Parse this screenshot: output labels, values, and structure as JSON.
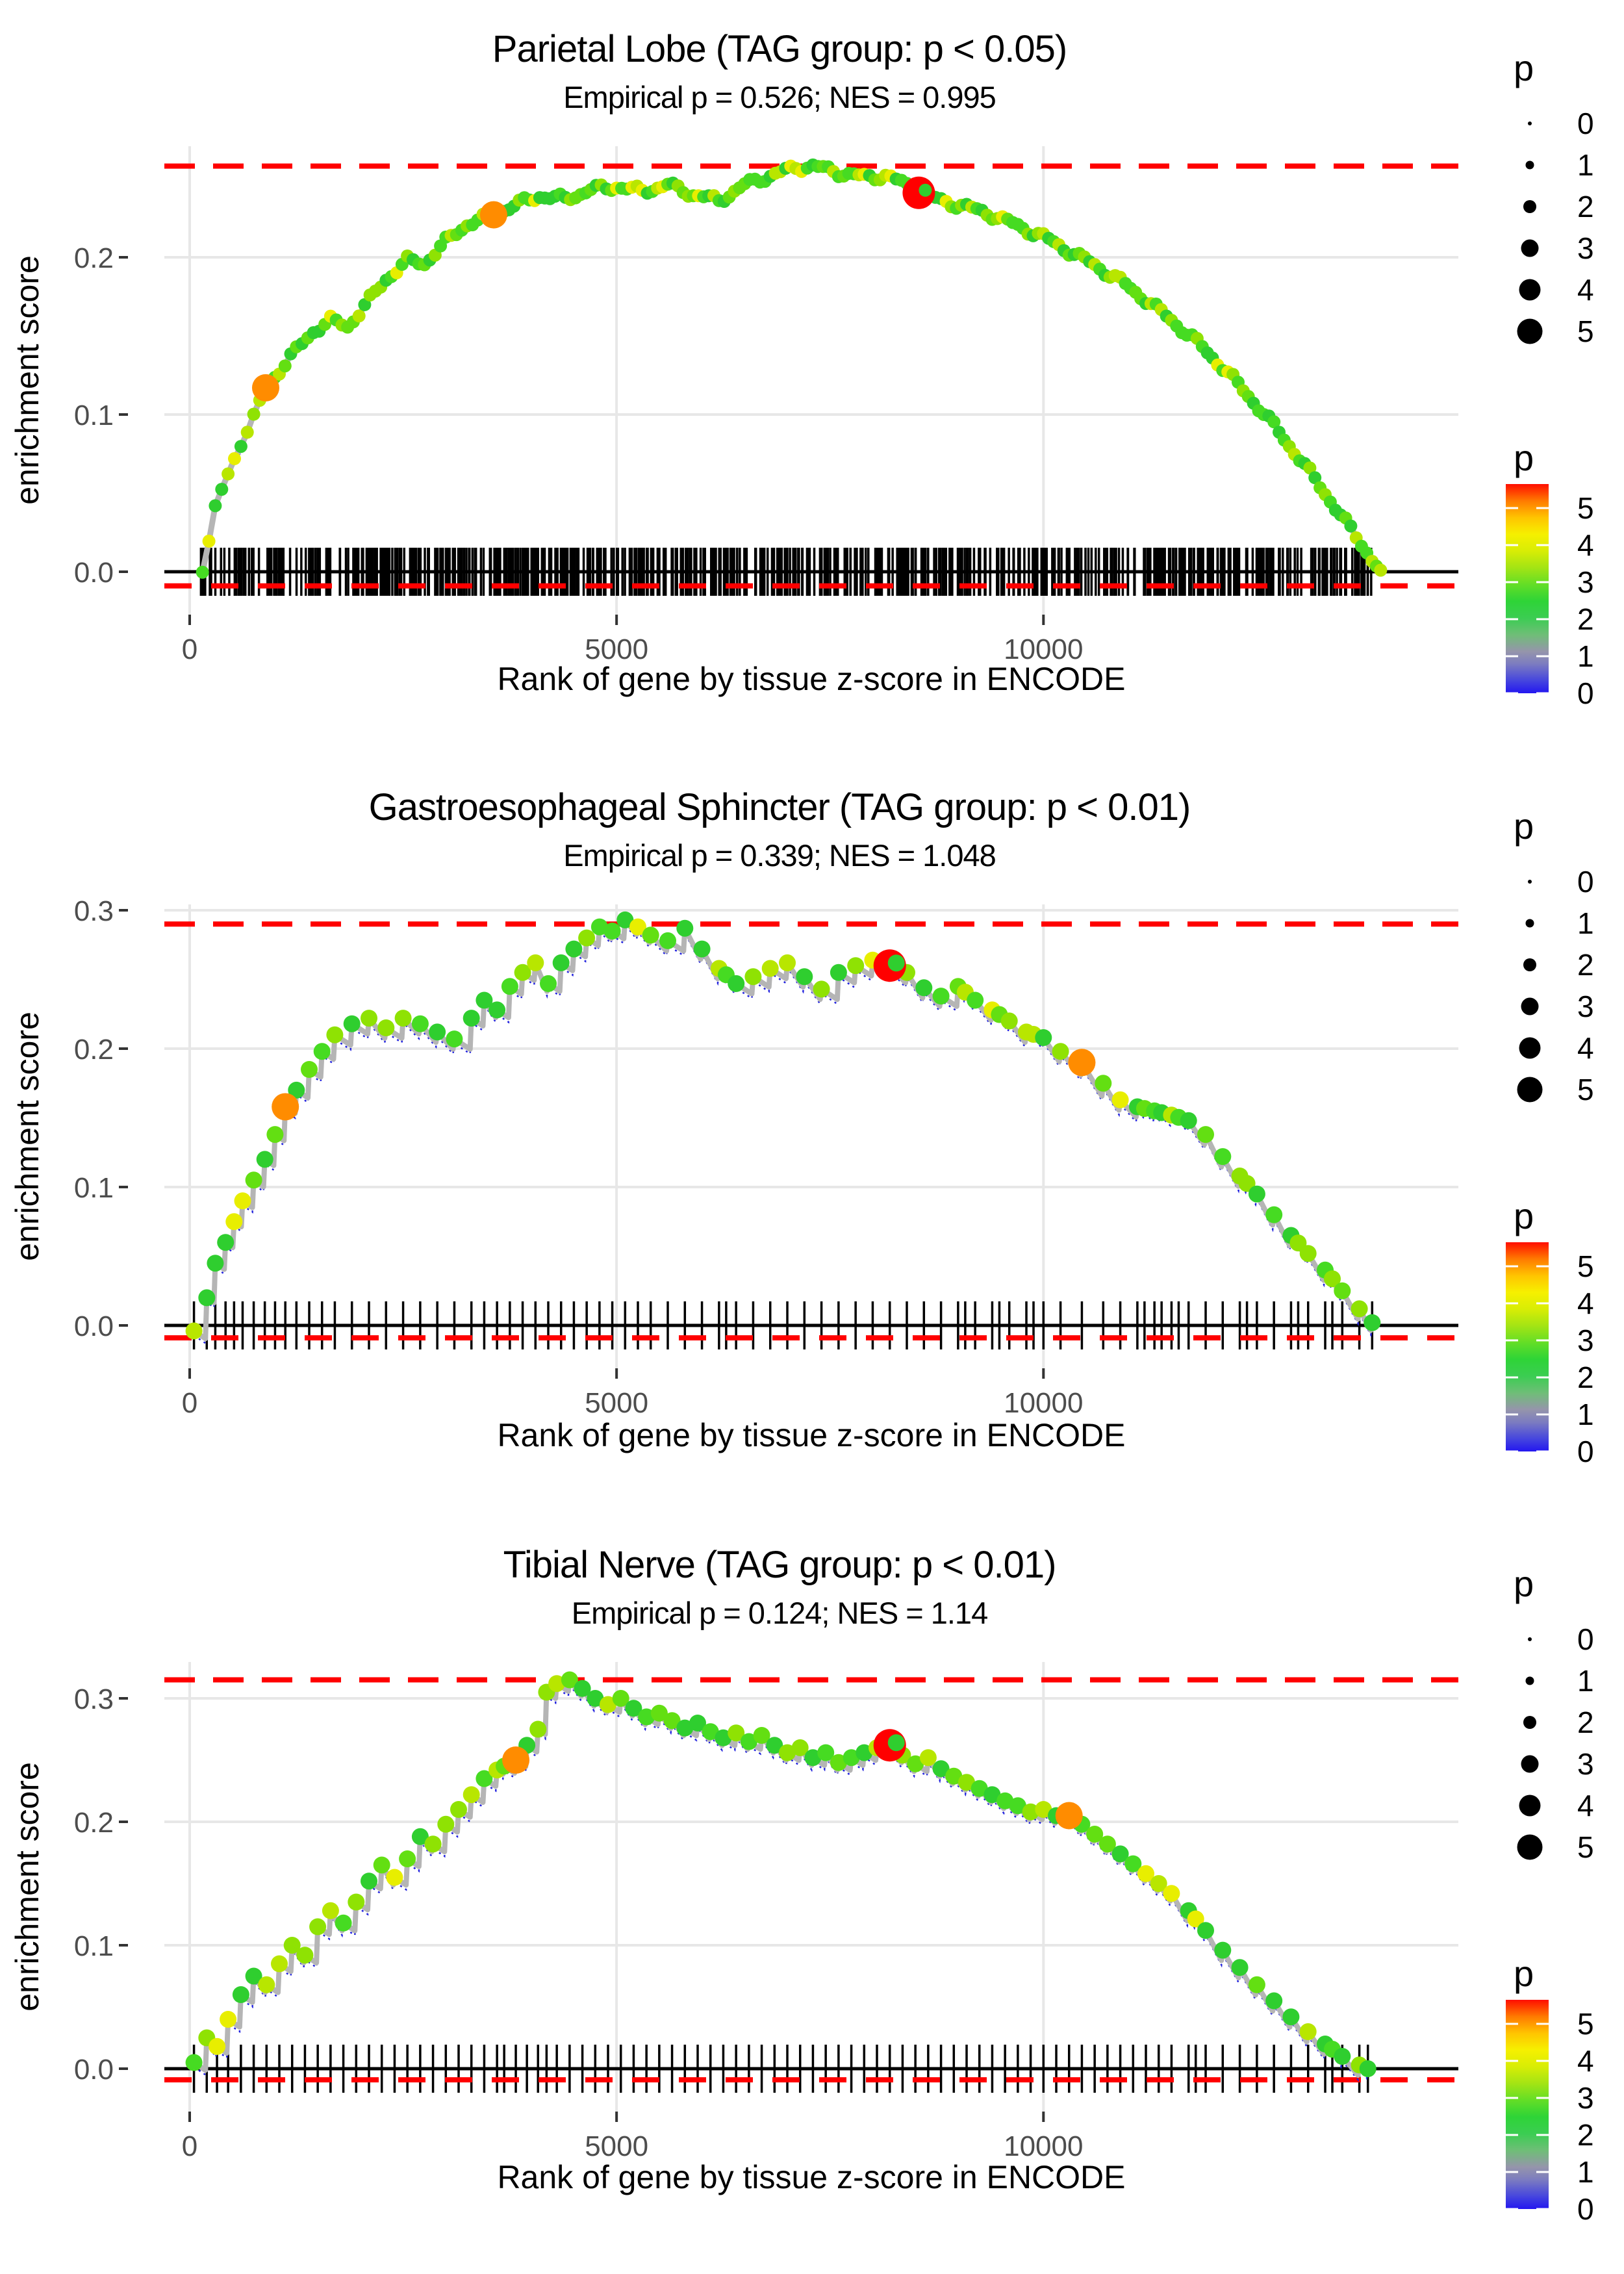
{
  "x_axis": {
    "label": "Rank of gene by tissue z-score in ENCODE",
    "ticks": [
      0,
      5000,
      10000
    ],
    "xlim": [
      -300,
      14860
    ]
  },
  "y_axis": {
    "label": "enrichment score"
  },
  "legend_size": {
    "title": "p",
    "values": [
      0,
      1,
      2,
      3,
      4,
      5
    ]
  },
  "legend_color": {
    "title": "p",
    "values": [
      5,
      4,
      3,
      2,
      1,
      0
    ],
    "gradient": [
      [
        "0",
        "#2316F0"
      ],
      [
        "0.06",
        "#4545DE"
      ],
      [
        "0.14",
        "#7C7CC0"
      ],
      [
        "0.20",
        "#9595AB"
      ],
      [
        "0.28",
        "#6FBE77"
      ],
      [
        "0.36",
        "#3BCD52"
      ],
      [
        "0.44",
        "#2ED437"
      ],
      [
        "0.52",
        "#63DE26"
      ],
      [
        "0.60",
        "#A3E414"
      ],
      [
        "0.68",
        "#D8ED05"
      ],
      [
        "0.76",
        "#F6F000"
      ],
      [
        "0.84",
        "#FFC400"
      ],
      [
        "0.92",
        "#FF7A00"
      ],
      [
        "1",
        "#FF0E00"
      ]
    ]
  },
  "style": {
    "dot_palette": [
      "#2FCE2F",
      "#46DB22",
      "#63DF12",
      "#8FE203",
      "#B8E600",
      "#E8EE00"
    ],
    "dot_weights": [
      0.3,
      0.2,
      0.15,
      0.15,
      0.12,
      0.08
    ],
    "line_gray": "#B5B5B5",
    "line_blue": "#2222DD",
    "grid": "#E7E7E7",
    "red": "#FF0000",
    "tick_text": "#4D4D4D",
    "rug_color": "#000000"
  },
  "chart_data": [
    {
      "type": "line",
      "style": "dense",
      "title": "Parietal Lobe (TAG group: p < 0.05)",
      "subtitle": "Empirical p = 0.526; NES = 0.995",
      "xlabel": "Rank of gene by tissue z-score in ENCODE",
      "ylabel": "enrichment score",
      "yticks": [
        0.0,
        0.1,
        0.2
      ],
      "ylim": [
        -0.03,
        0.27
      ],
      "hline_max": 0.258,
      "hline_zero": -0.009,
      "legend_position": "right",
      "grid": true,
      "rug_n": 620,
      "curve": [
        [
          150,
          0.002
        ],
        [
          300,
          0.04
        ],
        [
          450,
          0.062
        ],
        [
          600,
          0.082
        ],
        [
          750,
          0.098
        ],
        [
          890,
          0.117
        ],
        [
          1050,
          0.128
        ],
        [
          1250,
          0.141
        ],
        [
          1450,
          0.153
        ],
        [
          1650,
          0.16
        ],
        [
          1850,
          0.156
        ],
        [
          2050,
          0.169
        ],
        [
          2300,
          0.186
        ],
        [
          2550,
          0.198
        ],
        [
          2750,
          0.196
        ],
        [
          3000,
          0.21
        ],
        [
          3250,
          0.221
        ],
        [
          3560,
          0.227
        ],
        [
          3800,
          0.233
        ],
        [
          4100,
          0.239
        ],
        [
          4400,
          0.237
        ],
        [
          4700,
          0.243
        ],
        [
          5000,
          0.245
        ],
        [
          5300,
          0.242
        ],
        [
          5600,
          0.246
        ],
        [
          5900,
          0.24
        ],
        [
          6200,
          0.236
        ],
        [
          6500,
          0.246
        ],
        [
          6800,
          0.252
        ],
        [
          7100,
          0.257
        ],
        [
          7300,
          0.258
        ],
        [
          7600,
          0.254
        ],
        [
          7900,
          0.251
        ],
        [
          8150,
          0.252
        ],
        [
          8400,
          0.246
        ],
        [
          8540,
          0.241
        ],
        [
          8800,
          0.236
        ],
        [
          9100,
          0.232
        ],
        [
          9400,
          0.227
        ],
        [
          9700,
          0.22
        ],
        [
          10000,
          0.213
        ],
        [
          10300,
          0.204
        ],
        [
          10600,
          0.195
        ],
        [
          10900,
          0.185
        ],
        [
          11200,
          0.173
        ],
        [
          11500,
          0.16
        ],
        [
          11800,
          0.146
        ],
        [
          12100,
          0.13
        ],
        [
          12400,
          0.112
        ],
        [
          12700,
          0.093
        ],
        [
          13000,
          0.072
        ],
        [
          13300,
          0.05
        ],
        [
          13600,
          0.027
        ],
        [
          13850,
          0.008
        ],
        [
          13950,
          0.001
        ]
      ],
      "highlights": [
        {
          "x": 890,
          "y": 0.117,
          "p": 4,
          "color": "#FF8C00"
        },
        {
          "x": 3560,
          "y": 0.227,
          "p": 4,
          "color": "#FF8C00"
        },
        {
          "x": 8540,
          "y": 0.241,
          "p": 5,
          "color": "#FF0000"
        }
      ]
    },
    {
      "type": "line",
      "style": "sparse",
      "title": "Gastroesophageal Sphincter (TAG group: p < 0.01)",
      "subtitle": "Empirical p = 0.339; NES = 1.048",
      "xlabel": "Rank of gene by tissue z-score in ENCODE",
      "ylabel": "enrichment score",
      "yticks": [
        0.0,
        0.1,
        0.2,
        0.3
      ],
      "ylim": [
        -0.03,
        0.305
      ],
      "hline_max": 0.29,
      "hline_zero": -0.009,
      "legend_position": "right",
      "grid": true,
      "rug_n": null,
      "curve": [
        [
          50,
          -0.004
        ],
        [
          200,
          0.02
        ],
        [
          300,
          0.045
        ],
        [
          420,
          0.06
        ],
        [
          520,
          0.075
        ],
        [
          620,
          0.09
        ],
        [
          750,
          0.105
        ],
        [
          880,
          0.12
        ],
        [
          1000,
          0.138
        ],
        [
          1120,
          0.158
        ],
        [
          1250,
          0.17
        ],
        [
          1400,
          0.185
        ],
        [
          1550,
          0.198
        ],
        [
          1700,
          0.21
        ],
        [
          1900,
          0.218
        ],
        [
          2100,
          0.222
        ],
        [
          2300,
          0.215
        ],
        [
          2500,
          0.222
        ],
        [
          2700,
          0.218
        ],
        [
          2900,
          0.212
        ],
        [
          3100,
          0.207
        ],
        [
          3300,
          0.222
        ],
        [
          3450,
          0.235
        ],
        [
          3600,
          0.228
        ],
        [
          3750,
          0.245
        ],
        [
          3900,
          0.255
        ],
        [
          4050,
          0.262
        ],
        [
          4200,
          0.247
        ],
        [
          4350,
          0.262
        ],
        [
          4500,
          0.272
        ],
        [
          4650,
          0.28
        ],
        [
          4800,
          0.288
        ],
        [
          4950,
          0.285
        ],
        [
          5100,
          0.293
        ],
        [
          5250,
          0.288
        ],
        [
          5400,
          0.282
        ],
        [
          5600,
          0.278
        ],
        [
          5800,
          0.287
        ],
        [
          6000,
          0.272
        ],
        [
          6200,
          0.258
        ],
        [
          6400,
          0.247
        ],
        [
          6600,
          0.252
        ],
        [
          6800,
          0.258
        ],
        [
          7000,
          0.262
        ],
        [
          7200,
          0.252
        ],
        [
          7400,
          0.243
        ],
        [
          7600,
          0.255
        ],
        [
          7800,
          0.26
        ],
        [
          8000,
          0.264
        ],
        [
          8200,
          0.26
        ],
        [
          8400,
          0.255
        ],
        [
          8600,
          0.244
        ],
        [
          8800,
          0.238
        ],
        [
          9000,
          0.245
        ],
        [
          9200,
          0.235
        ],
        [
          9400,
          0.228
        ],
        [
          9600,
          0.22
        ],
        [
          9800,
          0.212
        ],
        [
          10000,
          0.208
        ],
        [
          10200,
          0.198
        ],
        [
          10450,
          0.19
        ],
        [
          10700,
          0.175
        ],
        [
          10900,
          0.163
        ],
        [
          11100,
          0.158
        ],
        [
          11300,
          0.155
        ],
        [
          11500,
          0.152
        ],
        [
          11700,
          0.148
        ],
        [
          11900,
          0.138
        ],
        [
          12100,
          0.122
        ],
        [
          12300,
          0.108
        ],
        [
          12500,
          0.095
        ],
        [
          12700,
          0.08
        ],
        [
          12900,
          0.065
        ],
        [
          13100,
          0.052
        ],
        [
          13300,
          0.04
        ],
        [
          13500,
          0.025
        ],
        [
          13700,
          0.012
        ],
        [
          13850,
          0.002
        ]
      ],
      "highlights": [
        {
          "x": 1120,
          "y": 0.158,
          "p": 4,
          "color": "#FF8C00"
        },
        {
          "x": 8200,
          "y": 0.26,
          "p": 5,
          "color": "#FF0000"
        },
        {
          "x": 10450,
          "y": 0.19,
          "p": 4,
          "color": "#FF8C00"
        }
      ]
    },
    {
      "type": "line",
      "style": "sparse",
      "title": "Tibial Nerve (TAG group: p < 0.01)",
      "subtitle": "Empirical p = 0.124; NES = 1.14",
      "xlabel": "Rank of gene by tissue z-score in ENCODE",
      "ylabel": "enrichment score",
      "yticks": [
        0.0,
        0.1,
        0.2,
        0.3
      ],
      "ylim": [
        -0.033,
        0.328
      ],
      "hline_max": 0.315,
      "hline_zero": -0.009,
      "legend_position": "right",
      "grid": true,
      "rug_n": null,
      "curve": [
        [
          50,
          0.005
        ],
        [
          200,
          0.025
        ],
        [
          320,
          0.018
        ],
        [
          450,
          0.04
        ],
        [
          600,
          0.06
        ],
        [
          750,
          0.075
        ],
        [
          900,
          0.068
        ],
        [
          1050,
          0.085
        ],
        [
          1200,
          0.1
        ],
        [
          1350,
          0.092
        ],
        [
          1500,
          0.115
        ],
        [
          1650,
          0.128
        ],
        [
          1800,
          0.118
        ],
        [
          1950,
          0.135
        ],
        [
          2100,
          0.152
        ],
        [
          2250,
          0.165
        ],
        [
          2400,
          0.155
        ],
        [
          2550,
          0.17
        ],
        [
          2700,
          0.188
        ],
        [
          2850,
          0.182
        ],
        [
          3000,
          0.198
        ],
        [
          3150,
          0.21
        ],
        [
          3300,
          0.222
        ],
        [
          3450,
          0.235
        ],
        [
          3600,
          0.242
        ],
        [
          3820,
          0.25
        ],
        [
          3950,
          0.262
        ],
        [
          4080,
          0.275
        ],
        [
          4180,
          0.305
        ],
        [
          4300,
          0.312
        ],
        [
          4450,
          0.315
        ],
        [
          4600,
          0.308
        ],
        [
          4750,
          0.3
        ],
        [
          4900,
          0.295
        ],
        [
          5050,
          0.3
        ],
        [
          5200,
          0.292
        ],
        [
          5350,
          0.285
        ],
        [
          5500,
          0.288
        ],
        [
          5650,
          0.282
        ],
        [
          5800,
          0.276
        ],
        [
          5950,
          0.28
        ],
        [
          6100,
          0.273
        ],
        [
          6250,
          0.268
        ],
        [
          6400,
          0.272
        ],
        [
          6550,
          0.265
        ],
        [
          6700,
          0.27
        ],
        [
          6850,
          0.262
        ],
        [
          7000,
          0.256
        ],
        [
          7150,
          0.26
        ],
        [
          7300,
          0.252
        ],
        [
          7450,
          0.256
        ],
        [
          7600,
          0.248
        ],
        [
          7750,
          0.252
        ],
        [
          7900,
          0.256
        ],
        [
          8050,
          0.26
        ],
        [
          8200,
          0.262
        ],
        [
          8350,
          0.254
        ],
        [
          8500,
          0.247
        ],
        [
          8650,
          0.252
        ],
        [
          8800,
          0.243
        ],
        [
          8950,
          0.237
        ],
        [
          9100,
          0.232
        ],
        [
          9250,
          0.227
        ],
        [
          9400,
          0.222
        ],
        [
          9550,
          0.217
        ],
        [
          9700,
          0.213
        ],
        [
          9850,
          0.208
        ],
        [
          10000,
          0.21
        ],
        [
          10150,
          0.205
        ],
        [
          10300,
          0.205
        ],
        [
          10450,
          0.198
        ],
        [
          10600,
          0.19
        ],
        [
          10750,
          0.182
        ],
        [
          10900,
          0.174
        ],
        [
          11050,
          0.166
        ],
        [
          11200,
          0.158
        ],
        [
          11350,
          0.15
        ],
        [
          11500,
          0.142
        ],
        [
          11700,
          0.128
        ],
        [
          11900,
          0.112
        ],
        [
          12100,
          0.096
        ],
        [
          12300,
          0.082
        ],
        [
          12500,
          0.068
        ],
        [
          12700,
          0.055
        ],
        [
          12900,
          0.042
        ],
        [
          13100,
          0.03
        ],
        [
          13300,
          0.02
        ],
        [
          13500,
          0.01
        ],
        [
          13700,
          0.003
        ],
        [
          13800,
          0
        ]
      ],
      "highlights": [
        {
          "x": 3820,
          "y": 0.25,
          "p": 4,
          "color": "#FF8C00"
        },
        {
          "x": 8200,
          "y": 0.262,
          "p": 5,
          "color": "#FF0000"
        },
        {
          "x": 10300,
          "y": 0.205,
          "p": 4,
          "color": "#FF8C00"
        }
      ]
    }
  ]
}
